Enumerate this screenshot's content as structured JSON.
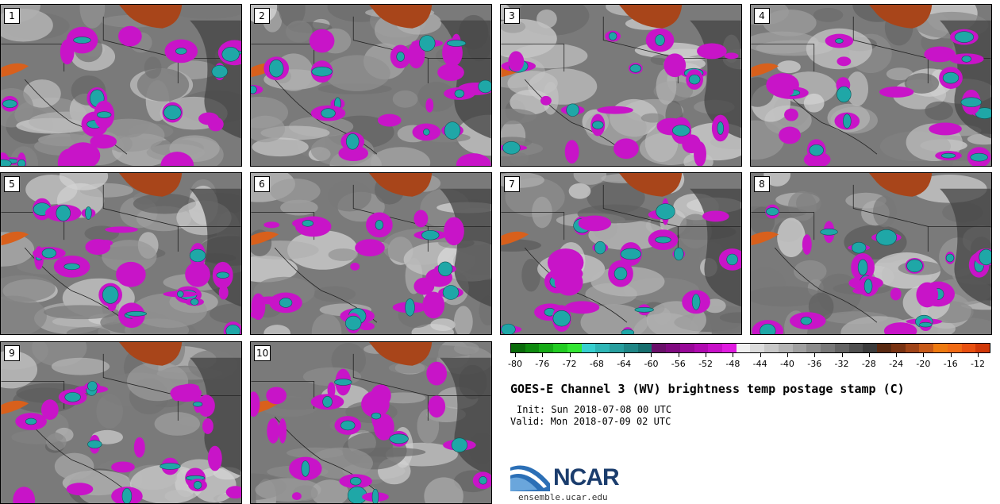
{
  "panels": [
    {
      "label": "1"
    },
    {
      "label": "2"
    },
    {
      "label": "3"
    },
    {
      "label": "4"
    },
    {
      "label": "5"
    },
    {
      "label": "6"
    },
    {
      "label": "7"
    },
    {
      "label": "8"
    },
    {
      "label": "9"
    },
    {
      "label": "10"
    }
  ],
  "colorbar": {
    "colors": [
      "#0a6b0a",
      "#0e8a0e",
      "#16ab16",
      "#22cc22",
      "#33e633",
      "#36cfcf",
      "#2eb6b6",
      "#279e9e",
      "#1f8686",
      "#176e6e",
      "#6a106a",
      "#800a80",
      "#980898",
      "#b00ab0",
      "#c810c8",
      "#e01ce0",
      "#f0f0f0",
      "#dcdcdc",
      "#c8c8c8",
      "#b4b4b4",
      "#a0a0a0",
      "#8c8c8c",
      "#787878",
      "#646464",
      "#505050",
      "#3c3c3c",
      "#5a2a12",
      "#7a3312",
      "#a04418",
      "#c85a18",
      "#ee7a10",
      "#f06a14",
      "#e85010",
      "#d03808"
    ],
    "tick_labels": [
      "-80",
      "-76",
      "-72",
      "-68",
      "-64",
      "-60",
      "-56",
      "-52",
      "-48",
      "-44",
      "-40",
      "-36",
      "-32",
      "-28",
      "-24",
      "-20",
      "-16",
      "-12"
    ]
  },
  "title": "GOES-E Channel 3 (WV) brightness temp postage stamp (C)",
  "init": "Init: Sun 2018-07-08 00 UTC",
  "valid": "Valid: Mon 2018-07-09 02 UTC",
  "logo_text": "NCAR",
  "url": "ensemble.ucar.edu"
}
